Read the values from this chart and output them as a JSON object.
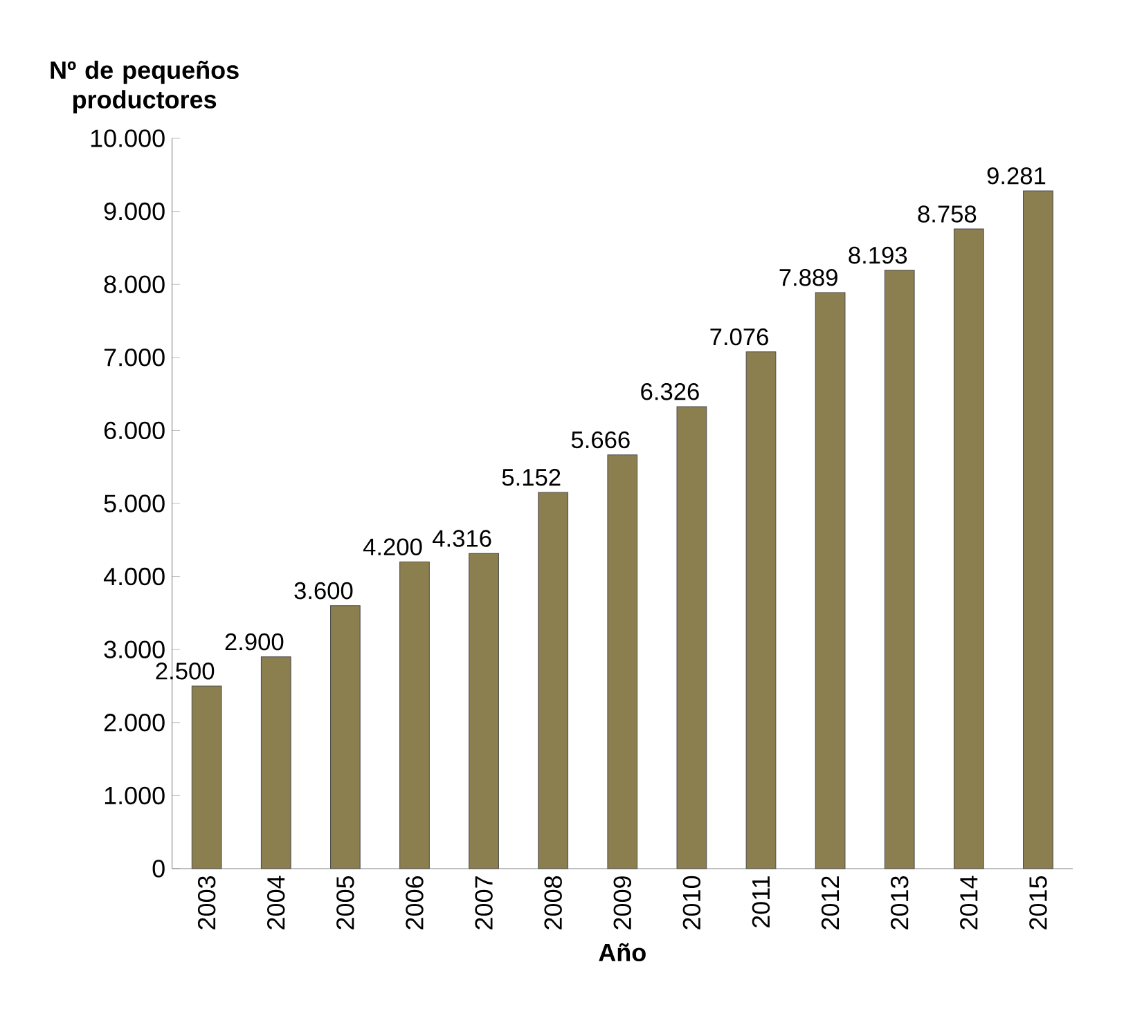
{
  "chart_data": {
    "type": "bar",
    "ylabel": "Nº de pequeños productores",
    "xlabel": "Año",
    "categories": [
      "2003",
      "2004",
      "2005",
      "2006",
      "2007",
      "2008",
      "2009",
      "2010",
      "2011",
      "2012",
      "2013",
      "2014",
      "2015"
    ],
    "values": [
      2500,
      2900,
      3600,
      4200,
      4316,
      5152,
      5666,
      6326,
      7076,
      7889,
      8193,
      8758,
      9281
    ],
    "value_labels": [
      "2.500",
      "2.900",
      "3.600",
      "4.200",
      "4.316",
      "5.152",
      "5.666",
      "6.326",
      "7.076",
      "7.889",
      "8.193",
      "8.758",
      "9.281"
    ],
    "color": "#8c7f4f",
    "ylim": [
      0,
      10000
    ],
    "yticks": [
      {
        "value": 0,
        "label": "0"
      },
      {
        "value": 1000,
        "label": "1.000"
      },
      {
        "value": 2000,
        "label": "2.000"
      },
      {
        "value": 3000,
        "label": "3.000"
      },
      {
        "value": 4000,
        "label": "4.000"
      },
      {
        "value": 5000,
        "label": "5.000"
      },
      {
        "value": 6000,
        "label": "6.000"
      },
      {
        "value": 7000,
        "label": "7.000"
      },
      {
        "value": 8000,
        "label": "8.000"
      },
      {
        "value": 9000,
        "label": "9.000"
      },
      {
        "value": 10000,
        "label": "10.000"
      }
    ],
    "grid": false
  }
}
